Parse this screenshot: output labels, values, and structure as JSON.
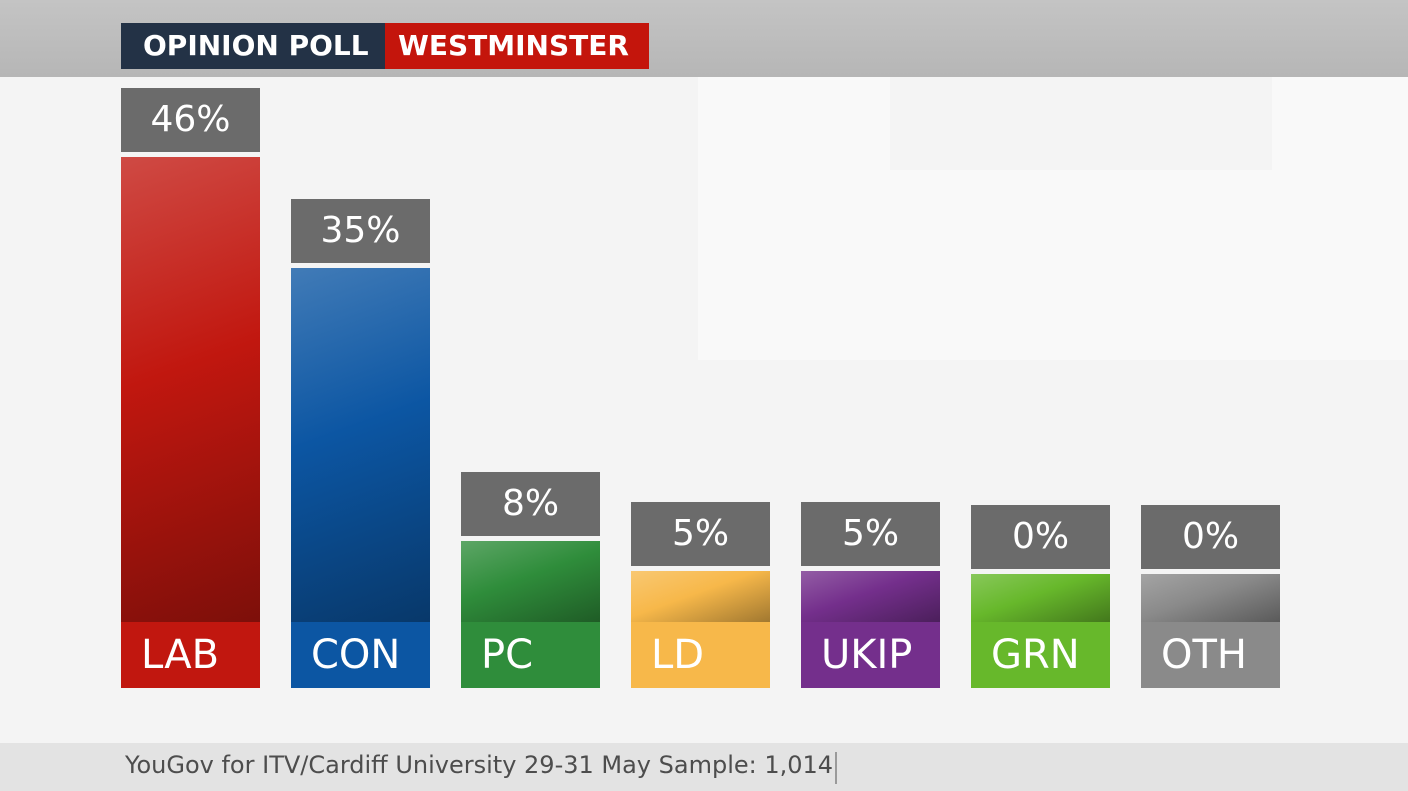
{
  "header": {
    "label_left": "OPINION POLL",
    "label_right": "WESTMINSTER",
    "colors": {
      "left": "#233246",
      "right": "#c4150c"
    }
  },
  "footer": {
    "source": "YouGov for ITV/Cardiff University 29-31 May Sample: 1,014"
  },
  "chart_data": {
    "type": "bar",
    "title": "",
    "xlabel": "",
    "ylabel": "",
    "categories": [
      "LAB",
      "CON",
      "PC",
      "LD",
      "UKIP",
      "GRN",
      "OTH"
    ],
    "values": [
      46,
      35,
      8,
      5,
      5,
      0,
      0
    ],
    "value_labels": [
      "46%",
      "35%",
      "8%",
      "5%",
      "5%",
      "0%",
      "0%"
    ],
    "colors": [
      "#c1170f",
      "#0c56a3",
      "#2f8d3b",
      "#f7b84a",
      "#742f8c",
      "#67b82b",
      "#8a8a8a"
    ],
    "ylim": [
      0,
      46
    ],
    "grid": false,
    "legend": "none"
  }
}
